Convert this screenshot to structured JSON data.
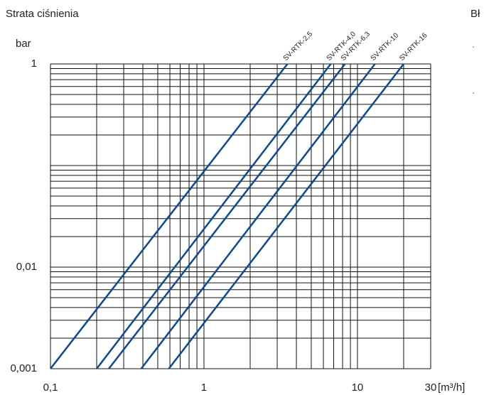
{
  "chart_data": {
    "type": "line",
    "title": "Strata ciśnienia",
    "y_label": "bar",
    "x_label": "[m³/h]",
    "side_text": "Bł",
    "log_x": true,
    "log_y": true,
    "grid": true,
    "xlim": [
      0.1,
      30
    ],
    "ylim": [
      0.001,
      1
    ],
    "xticks": [
      {
        "value": 0.1,
        "label": "0,1"
      },
      1,
      10,
      30
    ],
    "yticks": [
      {
        "value": 0.001,
        "label": "0,001"
      },
      {
        "value": 0.01,
        "label": "0,01"
      },
      1
    ],
    "x_grid": [
      0.1,
      0.2,
      0.3,
      0.4,
      0.5,
      0.6,
      0.7,
      0.8,
      0.9,
      1,
      2,
      3,
      4,
      5,
      6,
      7,
      8,
      9,
      10,
      20,
      30
    ],
    "y_grid": [
      0.001,
      0.002,
      0.003,
      0.004,
      0.005,
      0.006,
      0.007,
      0.008,
      0.009,
      0.01,
      0.02,
      0.03,
      0.04,
      0.05,
      0.06,
      0.07,
      0.08,
      0.09,
      0.1,
      0.2,
      0.3,
      0.4,
      0.5,
      0.6,
      0.7,
      0.8,
      0.9,
      1
    ],
    "series": [
      {
        "name": "SV-RTK-2,5",
        "color": "#0b4a92",
        "x": [
          0.1,
          3.5
        ],
        "values": [
          0.001,
          1
        ]
      },
      {
        "name": "SV-RTK-4,0",
        "color": "#0b4a92",
        "x": [
          0.2,
          6.7
        ],
        "values": [
          0.001,
          1
        ]
      },
      {
        "name": "SV-RTK-6,3",
        "color": "#0b4a92",
        "x": [
          0.24,
          8.3
        ],
        "values": [
          0.001,
          1
        ]
      },
      {
        "name": "SV-RTK-10",
        "color": "#0b4a92",
        "x": [
          0.39,
          13
        ],
        "values": [
          0.001,
          1
        ]
      },
      {
        "name": "SV-RTK-16",
        "color": "#0b4a92",
        "x": [
          0.59,
          20
        ],
        "values": [
          0.001,
          1
        ]
      }
    ]
  }
}
